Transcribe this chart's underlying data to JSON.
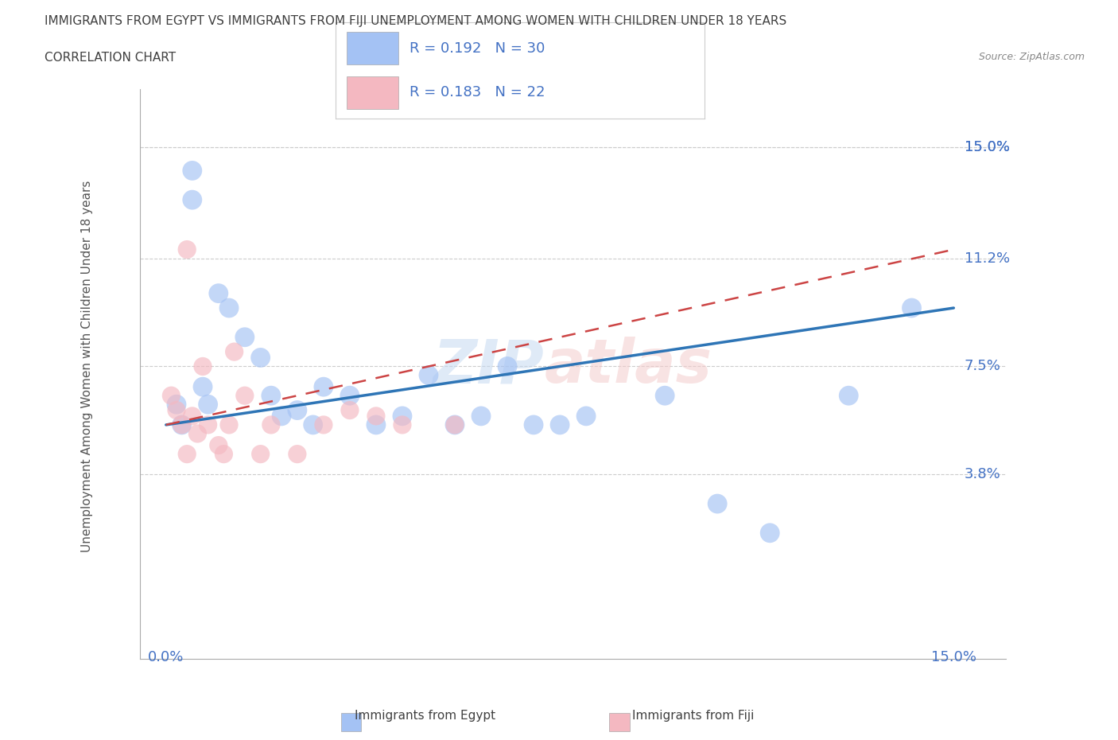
{
  "title": "IMMIGRANTS FROM EGYPT VS IMMIGRANTS FROM FIJI UNEMPLOYMENT AMONG WOMEN WITH CHILDREN UNDER 18 YEARS",
  "subtitle": "CORRELATION CHART",
  "source": "Source: ZipAtlas.com",
  "xlabel": "",
  "ylabel": "Unemployment Among Women with Children Under 18 years",
  "xlim": [
    0.0,
    15.0
  ],
  "ylim": [
    0.0,
    15.0
  ],
  "xtick_labels": [
    "0.0%",
    "15.0%"
  ],
  "xtick_values": [
    0.0,
    15.0
  ],
  "ytick_labels": [
    "3.8%",
    "7.5%",
    "11.2%",
    "15.0%"
  ],
  "ytick_values": [
    3.8,
    7.5,
    11.2,
    15.0
  ],
  "legend_egypt_label": "Immigrants from Egypt",
  "legend_fiji_label": "Immigrants from Fiji",
  "egypt_R": "0.192",
  "egypt_N": "30",
  "fiji_R": "0.183",
  "fiji_N": "22",
  "egypt_color": "#a4c2f4",
  "fiji_color": "#f4b8c1",
  "egypt_line_color": "#2e75b6",
  "fiji_line_color": "#cc4444",
  "legend_color": "#4472c4",
  "title_color": "#404040",
  "axis_label_color": "#4472c4",
  "background_color": "#ffffff",
  "grid_color": "#cccccc",
  "egypt_points_x": [
    0.2,
    0.3,
    0.5,
    0.5,
    0.7,
    0.8,
    1.0,
    1.2,
    1.5,
    1.8,
    2.0,
    2.2,
    2.5,
    2.8,
    3.0,
    3.5,
    4.0,
    4.5,
    5.0,
    5.5,
    6.0,
    6.5,
    7.0,
    7.5,
    8.0,
    9.5,
    10.5,
    11.5,
    13.0,
    14.2
  ],
  "egypt_points_y": [
    6.2,
    5.5,
    13.2,
    14.2,
    6.8,
    6.2,
    10.0,
    9.5,
    8.5,
    7.8,
    6.5,
    5.8,
    6.0,
    5.5,
    6.8,
    6.5,
    5.5,
    5.8,
    7.2,
    5.5,
    5.8,
    7.5,
    5.5,
    5.5,
    5.8,
    6.5,
    2.8,
    1.8,
    6.5,
    9.5
  ],
  "fiji_points_x": [
    0.1,
    0.2,
    0.3,
    0.4,
    0.5,
    0.6,
    0.7,
    0.8,
    1.0,
    1.1,
    1.2,
    1.3,
    1.5,
    1.8,
    2.0,
    2.5,
    3.0,
    3.5,
    4.0,
    4.5,
    5.5,
    0.4
  ],
  "fiji_points_y": [
    6.5,
    6.0,
    5.5,
    4.5,
    5.8,
    5.2,
    7.5,
    5.5,
    4.8,
    4.5,
    5.5,
    8.0,
    6.5,
    4.5,
    5.5,
    4.5,
    5.5,
    6.0,
    5.8,
    5.5,
    5.5,
    11.5
  ],
  "egypt_line_x0": 0.0,
  "egypt_line_y0": 5.5,
  "egypt_line_x1": 15.0,
  "egypt_line_y1": 9.5,
  "fiji_line_x0": 0.0,
  "fiji_line_y0": 5.5,
  "fiji_line_x1": 15.0,
  "fiji_line_y1": 11.5,
  "watermark_zip_color": "#c5d9f1",
  "watermark_atlas_color": "#f4cccc"
}
